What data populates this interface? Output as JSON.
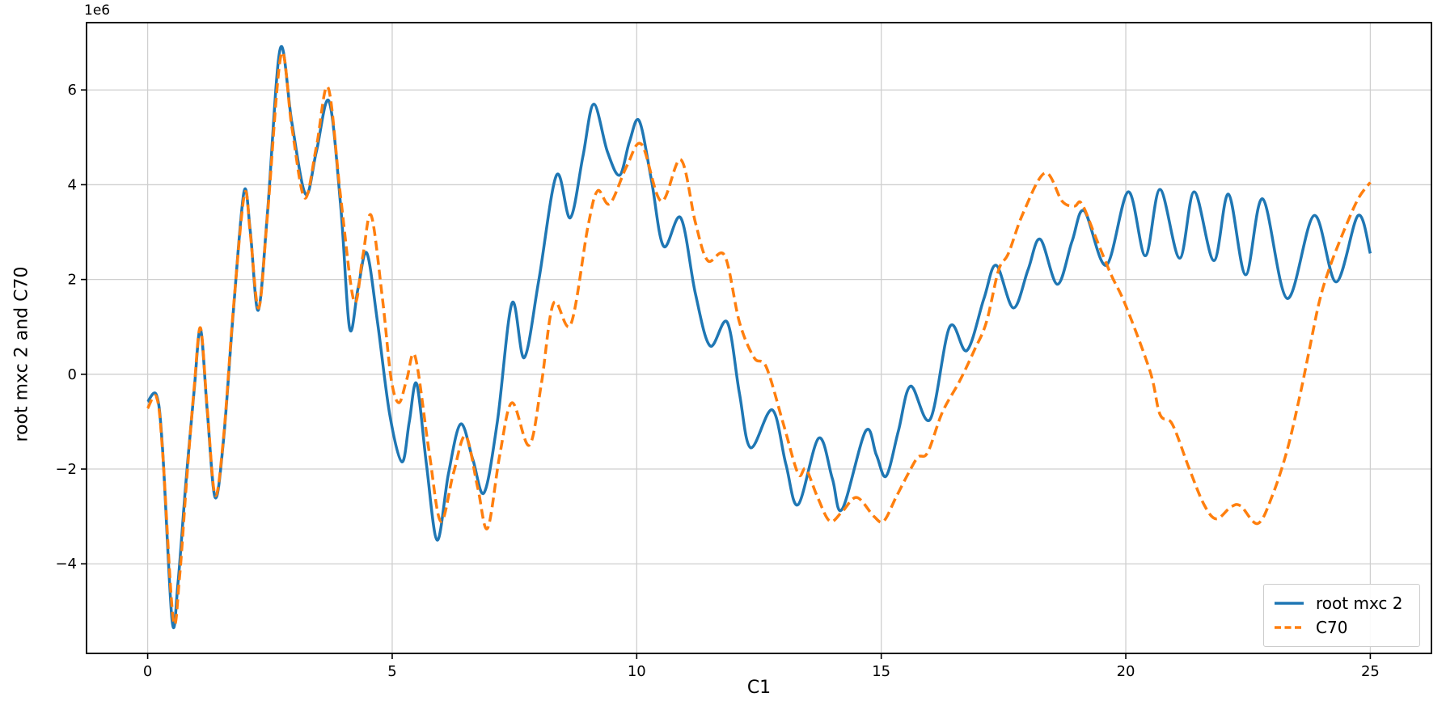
{
  "chart_data": {
    "type": "line",
    "title": "",
    "xlabel": "C1",
    "ylabel": "root mxc 2 and C70",
    "y_offset_label": "1e6",
    "y_unit_multiplier": 1000000,
    "xlim": [
      -1.25,
      26.25
    ],
    "ylim": [
      -5.89,
      7.42
    ],
    "x_ticks": [
      0,
      5,
      10,
      15,
      20,
      25
    ],
    "x_tick_labels": [
      "0",
      "5",
      "10",
      "15",
      "20",
      "25"
    ],
    "y_ticks": [
      -4,
      -2,
      0,
      2,
      4,
      6
    ],
    "y_tick_labels": [
      "−4",
      "−2",
      "0",
      "2",
      "4",
      "6"
    ],
    "grid": true,
    "grid_color": "#cfcfcf",
    "spine_color": "#000000",
    "legend_position": "lower right",
    "series": [
      {
        "name": "root mxc 2",
        "color": "#1f77b4",
        "style": "solid",
        "points": [
          [
            0,
            -0.58
          ],
          [
            0.18,
            -0.44
          ],
          [
            0.3,
            -1.5
          ],
          [
            0.5,
            -5.2
          ],
          [
            0.62,
            -4.4
          ],
          [
            0.78,
            -2.3
          ],
          [
            0.95,
            -0.35
          ],
          [
            1.08,
            0.95
          ],
          [
            1.22,
            -0.8
          ],
          [
            1.38,
            -2.6
          ],
          [
            1.55,
            -1.4
          ],
          [
            1.75,
            1.3
          ],
          [
            1.97,
            3.85
          ],
          [
            2.1,
            3.0
          ],
          [
            2.26,
            1.35
          ],
          [
            2.45,
            3.4
          ],
          [
            2.71,
            6.87
          ],
          [
            2.95,
            5.3
          ],
          [
            3.23,
            3.8
          ],
          [
            3.45,
            4.7
          ],
          [
            3.71,
            5.76
          ],
          [
            3.95,
            3.5
          ],
          [
            4.13,
            0.97
          ],
          [
            4.3,
            1.8
          ],
          [
            4.48,
            2.56
          ],
          [
            4.7,
            1.1
          ],
          [
            4.95,
            -0.85
          ],
          [
            5.2,
            -1.85
          ],
          [
            5.35,
            -1.0
          ],
          [
            5.5,
            -0.2
          ],
          [
            5.7,
            -1.9
          ],
          [
            5.92,
            -3.5
          ],
          [
            6.15,
            -2.1
          ],
          [
            6.4,
            -1.05
          ],
          [
            6.65,
            -1.8
          ],
          [
            6.88,
            -2.5
          ],
          [
            7.15,
            -1.0
          ],
          [
            7.45,
            1.5
          ],
          [
            7.7,
            0.35
          ],
          [
            8.0,
            2.0
          ],
          [
            8.36,
            4.2
          ],
          [
            8.64,
            3.3
          ],
          [
            8.9,
            4.6
          ],
          [
            9.12,
            5.7
          ],
          [
            9.4,
            4.7
          ],
          [
            9.65,
            4.2
          ],
          [
            9.85,
            4.9
          ],
          [
            10.05,
            5.35
          ],
          [
            10.3,
            4.1
          ],
          [
            10.55,
            2.7
          ],
          [
            10.9,
            3.3
          ],
          [
            11.2,
            1.7
          ],
          [
            11.5,
            0.6
          ],
          [
            11.85,
            1.1
          ],
          [
            12.1,
            -0.4
          ],
          [
            12.33,
            -1.55
          ],
          [
            12.77,
            -0.75
          ],
          [
            13.05,
            -1.9
          ],
          [
            13.3,
            -2.75
          ],
          [
            13.72,
            -1.35
          ],
          [
            14.0,
            -2.2
          ],
          [
            14.2,
            -2.85
          ],
          [
            14.68,
            -1.2
          ],
          [
            14.9,
            -1.7
          ],
          [
            15.1,
            -2.15
          ],
          [
            15.35,
            -1.2
          ],
          [
            15.6,
            -0.25
          ],
          [
            16.0,
            -0.95
          ],
          [
            16.4,
            1.0
          ],
          [
            16.75,
            0.5
          ],
          [
            17.1,
            1.6
          ],
          [
            17.35,
            2.3
          ],
          [
            17.7,
            1.4
          ],
          [
            18.0,
            2.2
          ],
          [
            18.25,
            2.85
          ],
          [
            18.6,
            1.9
          ],
          [
            18.9,
            2.8
          ],
          [
            19.15,
            3.45
          ],
          [
            19.6,
            2.3
          ],
          [
            20.05,
            3.85
          ],
          [
            20.4,
            2.5
          ],
          [
            20.7,
            3.9
          ],
          [
            21.1,
            2.45
          ],
          [
            21.4,
            3.85
          ],
          [
            21.8,
            2.4
          ],
          [
            22.1,
            3.8
          ],
          [
            22.45,
            2.1
          ],
          [
            22.8,
            3.7
          ],
          [
            23.3,
            1.6
          ],
          [
            23.85,
            3.35
          ],
          [
            24.3,
            1.95
          ],
          [
            24.75,
            3.35
          ],
          [
            25,
            2.55
          ]
        ]
      },
      {
        "name": "C70",
        "color": "#ff7f0e",
        "style": "dashed",
        "points": [
          [
            0,
            -0.72
          ],
          [
            0.18,
            -0.48
          ],
          [
            0.3,
            -1.55
          ],
          [
            0.52,
            -5.15
          ],
          [
            0.65,
            -4.3
          ],
          [
            0.8,
            -2.2
          ],
          [
            0.95,
            -0.3
          ],
          [
            1.08,
            0.98
          ],
          [
            1.22,
            -0.75
          ],
          [
            1.38,
            -2.55
          ],
          [
            1.55,
            -1.35
          ],
          [
            1.75,
            1.35
          ],
          [
            1.98,
            3.8
          ],
          [
            2.1,
            2.95
          ],
          [
            2.27,
            1.4
          ],
          [
            2.45,
            3.35
          ],
          [
            2.73,
            6.75
          ],
          [
            2.95,
            5.2
          ],
          [
            3.21,
            3.72
          ],
          [
            3.45,
            4.8
          ],
          [
            3.69,
            6.05
          ],
          [
            3.95,
            3.7
          ],
          [
            4.22,
            1.54
          ],
          [
            4.4,
            2.5
          ],
          [
            4.57,
            3.35
          ],
          [
            4.8,
            1.6
          ],
          [
            4.98,
            -0.1
          ],
          [
            5.14,
            -0.6
          ],
          [
            5.3,
            -0.1
          ],
          [
            5.47,
            0.37
          ],
          [
            5.75,
            -1.6
          ],
          [
            5.99,
            -3.1
          ],
          [
            6.25,
            -2.1
          ],
          [
            6.5,
            -1.3
          ],
          [
            6.75,
            -2.4
          ],
          [
            6.95,
            -3.25
          ],
          [
            7.2,
            -1.7
          ],
          [
            7.45,
            -0.6
          ],
          [
            7.8,
            -1.5
          ],
          [
            8.05,
            -0.2
          ],
          [
            8.3,
            1.5
          ],
          [
            8.65,
            1.05
          ],
          [
            9.0,
            3.1
          ],
          [
            9.2,
            3.87
          ],
          [
            9.45,
            3.6
          ],
          [
            9.8,
            4.4
          ],
          [
            10.1,
            4.85
          ],
          [
            10.5,
            3.65
          ],
          [
            10.9,
            4.53
          ],
          [
            11.2,
            3.2
          ],
          [
            11.45,
            2.4
          ],
          [
            11.8,
            2.5
          ],
          [
            12.1,
            1.1
          ],
          [
            12.4,
            0.35
          ],
          [
            12.65,
            0.15
          ],
          [
            13.0,
            -1.05
          ],
          [
            13.3,
            -2.1
          ],
          [
            13.46,
            -2.0
          ],
          [
            13.7,
            -2.6
          ],
          [
            13.95,
            -3.1
          ],
          [
            14.2,
            -2.9
          ],
          [
            14.5,
            -2.6
          ],
          [
            14.85,
            -3.0
          ],
          [
            15.05,
            -3.1
          ],
          [
            15.3,
            -2.6
          ],
          [
            15.55,
            -2.1
          ],
          [
            15.75,
            -1.75
          ],
          [
            15.95,
            -1.65
          ],
          [
            16.25,
            -0.8
          ],
          [
            16.6,
            -0.15
          ],
          [
            16.9,
            0.5
          ],
          [
            17.15,
            1.1
          ],
          [
            17.4,
            2.2
          ],
          [
            17.6,
            2.55
          ],
          [
            17.9,
            3.4
          ],
          [
            18.35,
            4.25
          ],
          [
            18.7,
            3.65
          ],
          [
            18.95,
            3.55
          ],
          [
            19.1,
            3.6
          ],
          [
            19.4,
            2.85
          ],
          [
            19.7,
            2.1
          ],
          [
            20.0,
            1.45
          ],
          [
            20.5,
            0.05
          ],
          [
            20.7,
            -0.85
          ],
          [
            20.95,
            -1.05
          ],
          [
            21.3,
            -2.0
          ],
          [
            21.6,
            -2.75
          ],
          [
            21.85,
            -3.05
          ],
          [
            22.15,
            -2.8
          ],
          [
            22.35,
            -2.78
          ],
          [
            22.7,
            -3.15
          ],
          [
            23.0,
            -2.55
          ],
          [
            23.3,
            -1.6
          ],
          [
            23.55,
            -0.5
          ],
          [
            23.75,
            0.5
          ],
          [
            23.95,
            1.5
          ],
          [
            24.15,
            2.2
          ],
          [
            24.45,
            3.0
          ],
          [
            24.75,
            3.7
          ],
          [
            25,
            4.05
          ]
        ]
      }
    ]
  }
}
